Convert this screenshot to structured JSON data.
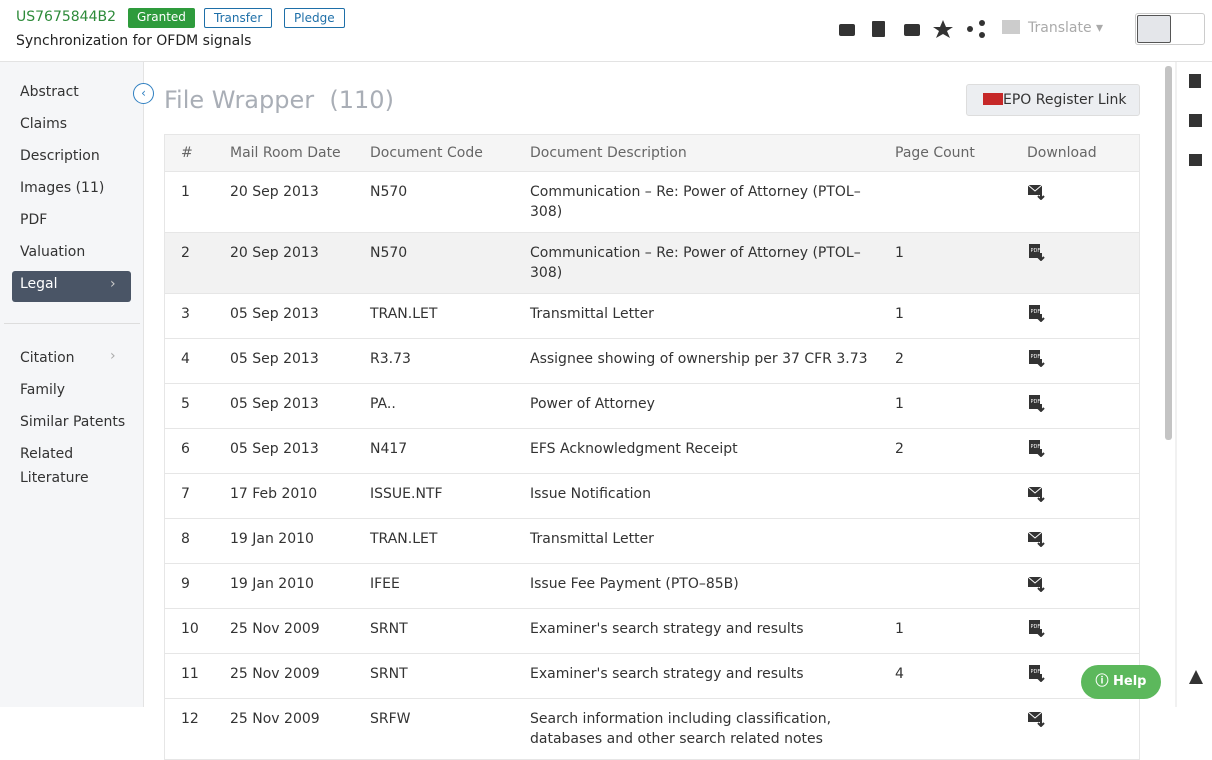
{
  "header": {
    "patent_number": "US7675844B2",
    "status": "Granted",
    "tags": [
      "Transfer",
      "Pledge"
    ],
    "title": "Synchronization for OFDM signals",
    "translate": "Translate"
  },
  "sidebar": {
    "primary": [
      "Abstract",
      "Claims",
      "Description",
      "Images (11)",
      "PDF",
      "Valuation",
      "Legal"
    ],
    "active": "Legal",
    "secondary": [
      "Citation",
      "Family",
      "Similar Patents",
      "Related Literature"
    ]
  },
  "main": {
    "heading": "File Wrapper",
    "count": "(110)",
    "register_button": "EPO Register Link",
    "table": {
      "columns": [
        "#",
        "Mail Room Date",
        "Document Code",
        "Document Description",
        "Page Count",
        "Download"
      ],
      "rows": [
        {
          "no": "1",
          "date": "20 Sep 2013",
          "code": "N570",
          "description": "Communication – Re: Power of Attorney (PTOL–308)",
          "pages": null,
          "download": "mail"
        },
        {
          "no": "2",
          "date": "20 Sep 2013",
          "code": "N570",
          "description": "Communication – Re: Power of Attorney (PTOL–308)",
          "pages": "1",
          "download": "pdf"
        },
        {
          "no": "3",
          "date": "05 Sep 2013",
          "code": "TRAN.LET",
          "description": "Transmittal Letter",
          "pages": "1",
          "download": "pdf"
        },
        {
          "no": "4",
          "date": "05 Sep 2013",
          "code": "R3.73",
          "description": "Assignee showing of ownership per 37 CFR 3.73",
          "pages": "2",
          "download": "pdf"
        },
        {
          "no": "5",
          "date": "05 Sep 2013",
          "code": "PA..",
          "description": "Power of Attorney",
          "pages": "1",
          "download": "pdf"
        },
        {
          "no": "6",
          "date": "05 Sep 2013",
          "code": "N417",
          "description": "EFS Acknowledgment Receipt",
          "pages": "2",
          "download": "pdf"
        },
        {
          "no": "7",
          "date": "17 Feb 2010",
          "code": "ISSUE.NTF",
          "description": "Issue Notification",
          "pages": null,
          "download": "mail"
        },
        {
          "no": "8",
          "date": "19 Jan 2010",
          "code": "TRAN.LET",
          "description": "Transmittal Letter",
          "pages": null,
          "download": "mail"
        },
        {
          "no": "9",
          "date": "19 Jan 2010",
          "code": "IFEE",
          "description": "Issue Fee Payment (PTO–85B)",
          "pages": null,
          "download": "mail"
        },
        {
          "no": "10",
          "date": "25 Nov 2009",
          "code": "SRNT",
          "description": "Examiner's search strategy and results",
          "pages": "1",
          "download": "pdf"
        },
        {
          "no": "11",
          "date": "25 Nov 2009",
          "code": "SRNT",
          "description": "Examiner's search strategy and results",
          "pages": "4",
          "download": "pdf"
        },
        {
          "no": "12",
          "date": "25 Nov 2009",
          "code": "SRFW",
          "description": "Search information including classification, databases and other search related notes",
          "pages": null,
          "download": "mail"
        }
      ],
      "highlighted_row": 1
    }
  },
  "help": "Help"
}
